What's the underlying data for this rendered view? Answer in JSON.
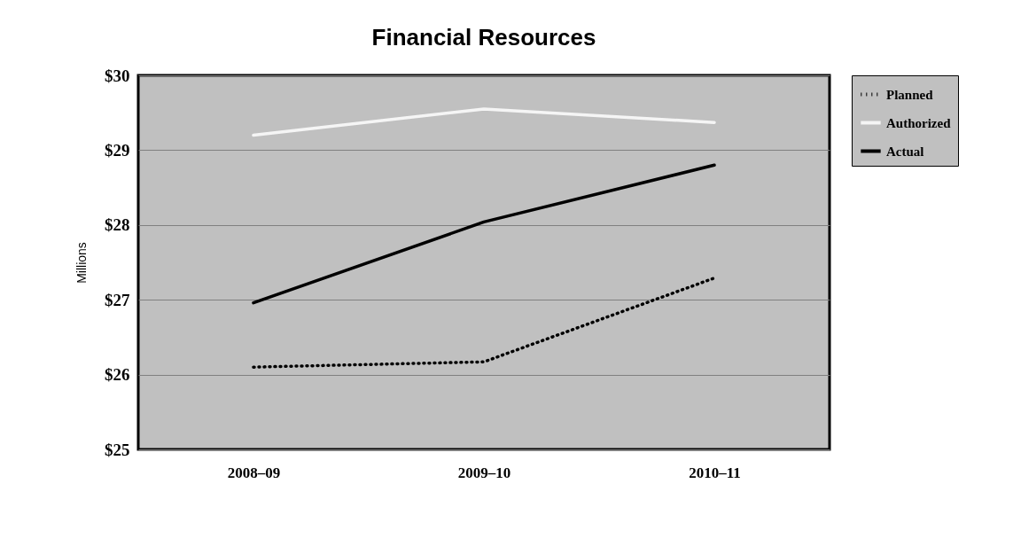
{
  "chart_data": {
    "type": "line",
    "title": "Financial Resources",
    "ylabel": "Millions",
    "categories": [
      "2008–09",
      "2009–10",
      "2010–11"
    ],
    "series": [
      {
        "name": "Planned",
        "color": "#000000",
        "line_style": "dotted",
        "values": [
          26.1,
          26.17,
          27.29
        ]
      },
      {
        "name": "Authorized",
        "color": "#f5f5f5",
        "line_style": "solid",
        "values": [
          29.2,
          29.55,
          29.37
        ]
      },
      {
        "name": "Actual",
        "color": "#000000",
        "line_style": "solid",
        "values": [
          26.96,
          28.04,
          28.8
        ]
      }
    ],
    "ylim": [
      25,
      30
    ],
    "yticks": [
      {
        "value": 25,
        "label": "$25"
      },
      {
        "value": 26,
        "label": "$26"
      },
      {
        "value": 27,
        "label": "$27"
      },
      {
        "value": 28,
        "label": "$28"
      },
      {
        "value": 29,
        "label": "$29"
      },
      {
        "value": 30,
        "label": "$30"
      }
    ],
    "grid": "y",
    "legend": "right",
    "marker": "none"
  }
}
